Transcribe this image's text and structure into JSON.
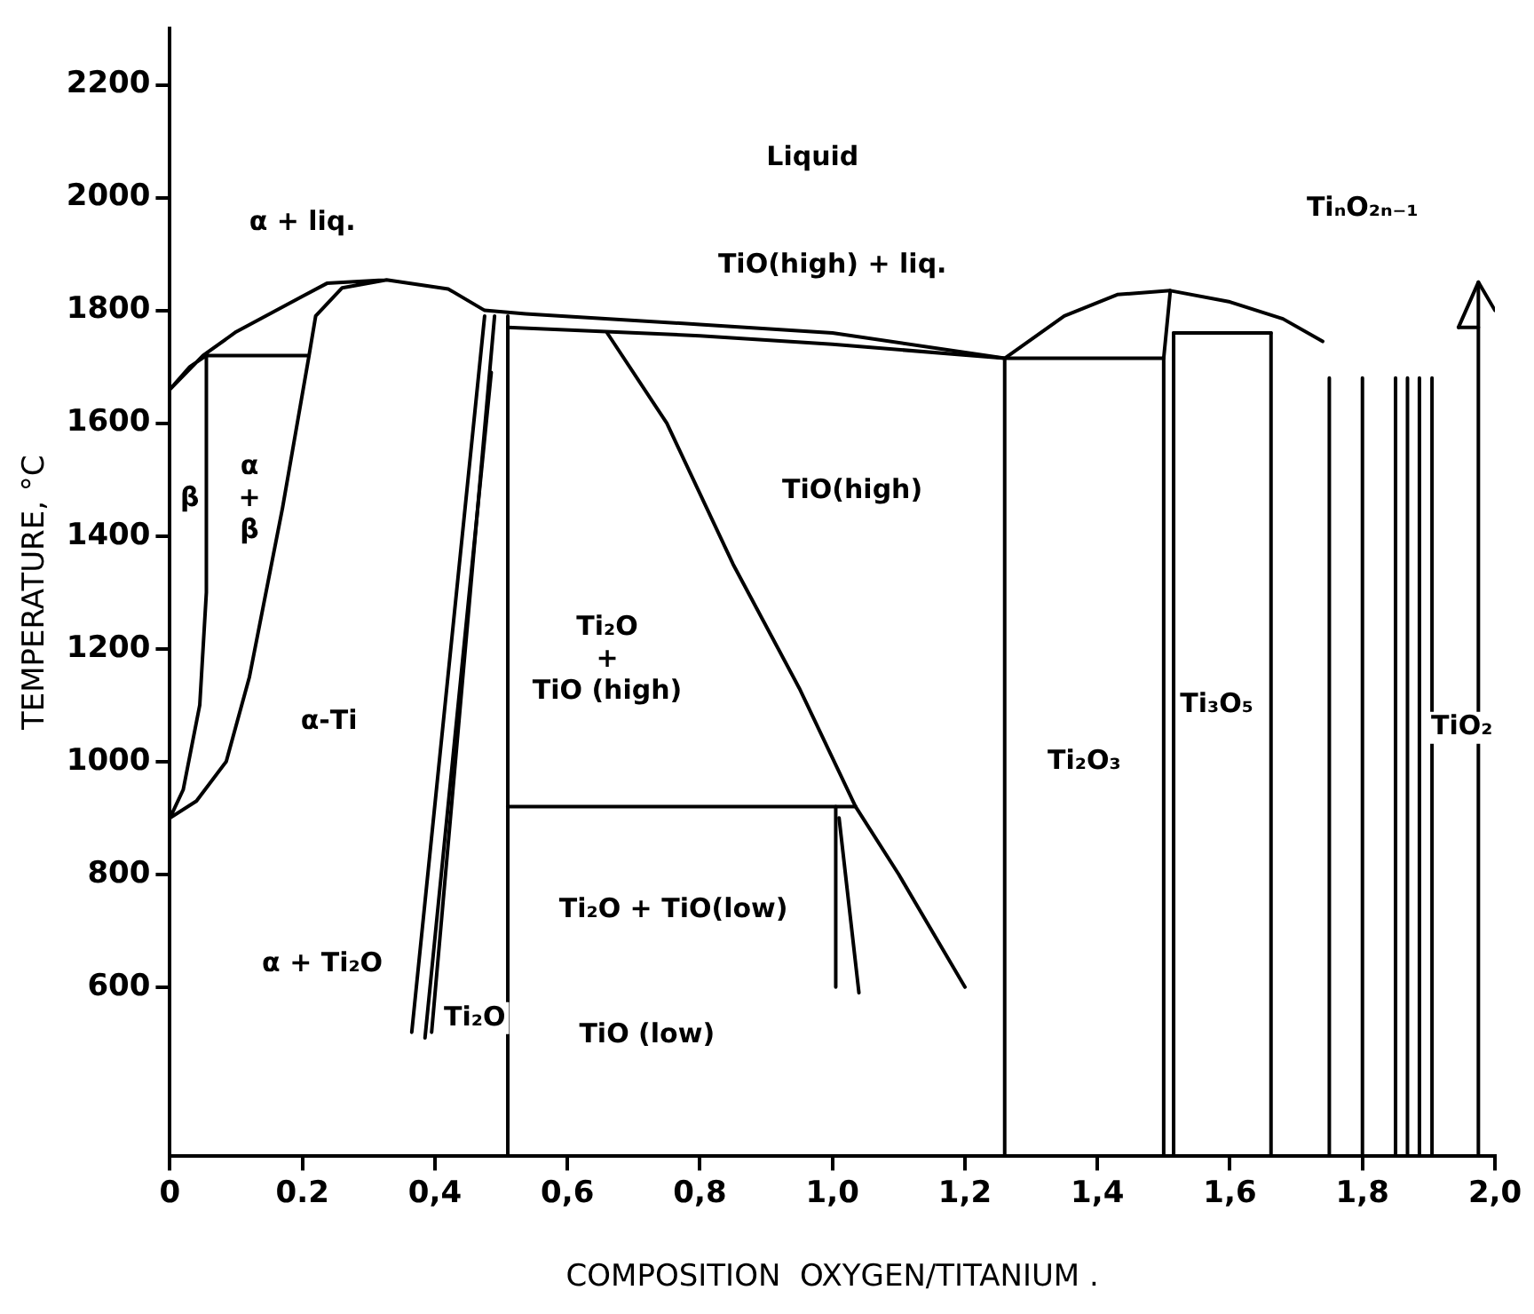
{
  "chart_data": {
    "type": "line",
    "xlabel": "COMPOSITION  OXYGEN/TITANIUM .",
    "ylabel": "TEMPERATURE, °C",
    "xlim": [
      0,
      2.0
    ],
    "ylim": [
      300,
      2300
    ],
    "xticks": [
      0,
      {
        "value": 0.2,
        "label": "0.2"
      },
      {
        "value": 0.4,
        "label": "0,4"
      },
      {
        "value": 0.6,
        "label": "0,6"
      },
      {
        "value": 0.8,
        "label": "0,8"
      },
      {
        "value": 1.0,
        "label": "1,0"
      },
      {
        "value": 1.2,
        "label": "1,2"
      },
      {
        "value": 1.4,
        "label": "1,4"
      },
      {
        "value": 1.6,
        "label": "1,6"
      },
      {
        "value": 1.8,
        "label": "1,8"
      },
      {
        "value": 2.0,
        "label": "2,0"
      }
    ],
    "yticks": [
      600,
      800,
      1000,
      1200,
      1400,
      1600,
      1800,
      2000,
      2200
    ],
    "grid": false,
    "legend": false,
    "marker": "none",
    "line_style": "solid",
    "series": [
      {
        "color": "#000000",
        "x": [
          0.327,
          0.26,
          0.22,
          0.21,
          0.055,
          0.21,
          0.17,
          0.12,
          0.085,
          0.04,
          0,
          0.02,
          0.045,
          0.055,
          0.055,
          0.03,
          0,
          0.05,
          0.1,
          0.2,
          0.237,
          0.327,
          0.42,
          0.475,
          0.537,
          0.8,
          1.0,
          1.26,
          1.35,
          1.43,
          1.51,
          1.6,
          1.68,
          1.74
        ],
        "values": [
          1854,
          1840,
          1790,
          1720,
          1720,
          1720,
          1450,
          1150,
          1000,
          930,
          900,
          950,
          1100,
          1300,
          1720,
          1700,
          1660,
          1720,
          1762,
          1825,
          1848,
          1854,
          1838,
          1800,
          1794,
          1775,
          1760,
          1715,
          1790,
          1828,
          1835,
          1815,
          1785,
          1745
        ]
      },
      {
        "color": "#000000",
        "x": [
          0.475,
          0.365
        ],
        "values": [
          1790,
          520
        ]
      },
      {
        "color": "#000000",
        "x": [
          0.485,
          0.385
        ],
        "values": [
          1690,
          510
        ]
      },
      {
        "color": "#000000",
        "x": [
          0.49,
          0.395
        ],
        "values": [
          1790,
          520
        ]
      },
      {
        "color": "#000000",
        "x": [
          0.51,
          0.51
        ],
        "values": [
          1790,
          300
        ]
      },
      {
        "color": "#000000",
        "x": [
          0.51,
          0.8,
          1.0,
          1.26,
          1.26,
          1.26,
          1.5
        ],
        "values": [
          1770,
          1755,
          1740,
          1715,
          300,
          1715,
          1715
        ]
      },
      {
        "color": "#000000",
        "x": [
          0.51,
          1.035
        ],
        "values": [
          920,
          920
        ]
      },
      {
        "color": "#000000",
        "x": [
          0.66,
          0.75,
          0.85,
          0.95,
          1.035,
          1.1,
          1.2
        ],
        "values": [
          1760,
          1600,
          1350,
          1130,
          920,
          800,
          600
        ]
      },
      {
        "color": "#000000",
        "x": [
          1.005,
          1.005
        ],
        "values": [
          920,
          600
        ]
      },
      {
        "color": "#000000",
        "x": [
          1.01,
          1.04
        ],
        "values": [
          900,
          590
        ]
      },
      {
        "color": "#000000",
        "x": [
          1.51,
          1.5,
          1.5
        ],
        "values": [
          1835,
          1715,
          300
        ]
      },
      {
        "color": "#000000",
        "x": [
          1.515,
          1.515
        ],
        "values": [
          1760,
          300
        ]
      },
      {
        "color": "#000000",
        "x": [
          1.515,
          1.662
        ],
        "values": [
          1760,
          1760
        ]
      },
      {
        "color": "#000000",
        "x": [
          1.662,
          1.662
        ],
        "values": [
          1760,
          300
        ]
      },
      {
        "color": "#000000",
        "x": [
          1.75,
          1.75
        ],
        "values": [
          1680,
          300
        ]
      },
      {
        "color": "#000000",
        "x": [
          1.8,
          1.8
        ],
        "values": [
          1680,
          300
        ]
      },
      {
        "color": "#000000",
        "x": [
          1.85,
          1.85
        ],
        "values": [
          1680,
          300
        ]
      },
      {
        "color": "#000000",
        "x": [
          1.868,
          1.868
        ],
        "values": [
          1680,
          300
        ]
      },
      {
        "color": "#000000",
        "x": [
          1.886,
          1.886
        ],
        "values": [
          1680,
          300
        ]
      },
      {
        "color": "#000000",
        "x": [
          1.905,
          1.905
        ],
        "values": [
          1680,
          300
        ]
      },
      {
        "color": "#000000",
        "x": [
          1.975,
          1.975
        ],
        "values": [
          1850,
          300
        ]
      },
      {
        "color": "#000000",
        "x": [
          1.945,
          1.975,
          2.0
        ],
        "values": [
          1770,
          1850,
          1800
        ]
      },
      {
        "color": "#000000",
        "x": [
          1.945,
          1.975
        ],
        "values": [
          1770,
          1770
        ]
      }
    ],
    "annotations": [
      "Liquid",
      "α + liq.",
      "TiO(high) + liq.",
      "TiₙO₂ₙ₋₁",
      "TiO(high)",
      "β",
      "α\n+\nβ",
      "Ti₂O\n+\nTiO (high)",
      "α-Ti",
      "Ti₂O + TiO(low)",
      "α + Ti₂O",
      "Ti₂O",
      "TiO (low)",
      "Ti₂O₃",
      "Ti₃O₅",
      "TiO₂"
    ]
  }
}
